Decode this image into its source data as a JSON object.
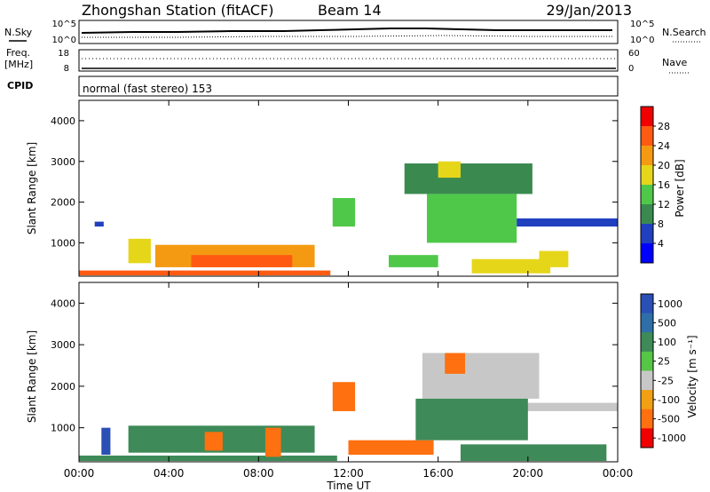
{
  "header": {
    "station": "Zhongshan Station (fitACF)",
    "beam": "Beam 14",
    "date": "29/Jan/2013"
  },
  "strip_labels": {
    "nsky": "N.Sky",
    "nsky_ticks": [
      "10^5",
      "10^0"
    ],
    "nsearch": "N.Search",
    "freq": "Freq.",
    "freq_unit": "[MHz]",
    "freq_ticks": [
      "18",
      "8"
    ],
    "nave": "Nave",
    "nave_ticks": [
      "60",
      "0"
    ],
    "cpid": "CPID",
    "mode": "normal (fast stereo) 153"
  },
  "chart_data": [
    {
      "type": "heatmap",
      "panel": "power",
      "ylabel": "Slant Range [km]",
      "ylim": [
        180,
        4500
      ],
      "yticks": [
        "1000",
        "2000",
        "3000",
        "4000"
      ],
      "xlim": [
        0,
        24
      ],
      "colorbar": {
        "label": "Power [dB]",
        "ticks": [
          "4",
          "8",
          "12",
          "16",
          "20",
          "24",
          "28"
        ],
        "colors": [
          "#0000ff",
          "#2040c0",
          "#3a8a50",
          "#4fc84a",
          "#e6d619",
          "#f49a12",
          "#ff5a12",
          "#f00000"
        ]
      },
      "regions": [
        {
          "t0": 0.0,
          "t1": 11.2,
          "r0": 200,
          "r1": 320,
          "value": 26
        },
        {
          "t0": 0.7,
          "t1": 1.1,
          "r0": 1400,
          "r1": 1520,
          "value": 6
        },
        {
          "t0": 2.2,
          "t1": 3.2,
          "r0": 500,
          "r1": 1100,
          "value": 16
        },
        {
          "t0": 3.4,
          "t1": 10.5,
          "r0": 400,
          "r1": 950,
          "value": 22
        },
        {
          "t0": 5.0,
          "t1": 9.5,
          "r0": 400,
          "r1": 700,
          "value": 26
        },
        {
          "t0": 11.3,
          "t1": 12.3,
          "r0": 1400,
          "r1": 2100,
          "value": 14
        },
        {
          "t0": 13.8,
          "t1": 16.0,
          "r0": 400,
          "r1": 700,
          "value": 12
        },
        {
          "t0": 14.5,
          "t1": 20.2,
          "r0": 2200,
          "r1": 2950,
          "value": 8
        },
        {
          "t0": 15.5,
          "t1": 19.5,
          "r0": 1000,
          "r1": 2200,
          "value": 12
        },
        {
          "t0": 16.0,
          "t1": 17.0,
          "r0": 2600,
          "r1": 3000,
          "value": 16
        },
        {
          "t0": 19.5,
          "t1": 24.0,
          "r0": 1400,
          "r1": 1600,
          "value": 6
        },
        {
          "t0": 17.5,
          "t1": 21.0,
          "r0": 250,
          "r1": 600,
          "value": 18
        },
        {
          "t0": 20.5,
          "t1": 21.8,
          "r0": 400,
          "r1": 800,
          "value": 16
        }
      ]
    },
    {
      "type": "heatmap",
      "panel": "velocity",
      "ylabel": "Slant Range [km]",
      "ylim": [
        180,
        4500
      ],
      "yticks": [
        "1000",
        "2000",
        "3000",
        "4000"
      ],
      "xlim": [
        0,
        24
      ],
      "xticks": [
        "00:00",
        "04:00",
        "08:00",
        "12:00",
        "16:00",
        "20:00",
        "00:00"
      ],
      "xlabel": "Time UT",
      "colorbar": {
        "label": "Velocity [m s⁻¹]",
        "ticks": [
          "1000",
          "500",
          "100",
          "25",
          "-25",
          "-100",
          "-500",
          "-1000"
        ],
        "colors": [
          "#2a4fb5",
          "#2f6fa8",
          "#3e8a58",
          "#55c646",
          "#c7c7c7",
          "#f0a012",
          "#ff7010",
          "#f00000"
        ]
      },
      "regions": [
        {
          "t0": 0.0,
          "t1": 11.5,
          "r0": 200,
          "r1": 330,
          "value": 100
        },
        {
          "t0": 1.0,
          "t1": 1.4,
          "r0": 350,
          "r1": 1000,
          "value": 500
        },
        {
          "t0": 2.2,
          "t1": 10.5,
          "r0": 400,
          "r1": 1050,
          "value": 100
        },
        {
          "t0": 5.6,
          "t1": 6.4,
          "r0": 450,
          "r1": 900,
          "value": -100
        },
        {
          "t0": 8.3,
          "t1": 9.0,
          "r0": 300,
          "r1": 1000,
          "value": -100
        },
        {
          "t0": 11.3,
          "t1": 12.3,
          "r0": 1400,
          "r1": 2100,
          "value": -100
        },
        {
          "t0": 12.0,
          "t1": 15.8,
          "r0": 350,
          "r1": 700,
          "value": -100
        },
        {
          "t0": 15.3,
          "t1": 20.5,
          "r0": 1700,
          "r1": 2800,
          "value": 0
        },
        {
          "t0": 19.0,
          "t1": 24.0,
          "r0": 1400,
          "r1": 1600,
          "value": 0
        },
        {
          "t0": 15.0,
          "t1": 20.0,
          "r0": 700,
          "r1": 1700,
          "value": 100
        },
        {
          "t0": 16.3,
          "t1": 17.2,
          "r0": 2300,
          "r1": 2800,
          "value": -100
        },
        {
          "t0": 17.0,
          "t1": 23.5,
          "r0": 200,
          "r1": 600,
          "value": 100
        }
      ]
    }
  ]
}
